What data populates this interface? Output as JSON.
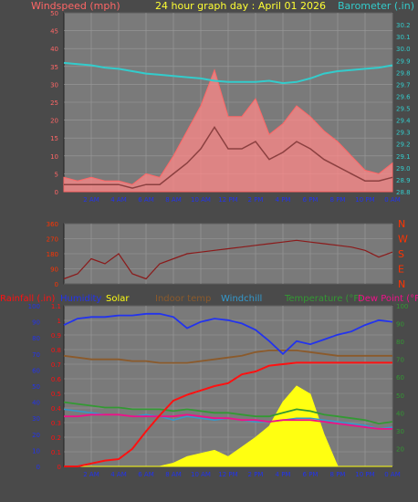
{
  "colors": {
    "background": "#4a4a4a",
    "plot_bg": "#7a7a7a",
    "grid": "#9a9a9a",
    "wind_label": "#ff6666",
    "title": "#ffff33",
    "baro": "#33cccc",
    "dir_label": "#ff3300",
    "dir_line": "#8b1a1a",
    "rain": "#ff1111",
    "humidity": "#2233ee",
    "solar": "#ffff11",
    "indoor": "#8b5a2b",
    "windchill": "#3399cc",
    "temperature": "#339933",
    "dewpoint": "#ee1188",
    "gust": "#ff8888",
    "avgwind": "#8b4040"
  },
  "header": {
    "wind_label": "Windspeed (mph)",
    "title": "24 hour graph day : April 01 2026",
    "baro_label": "Barometer (.in)"
  },
  "bottom_header": {
    "rain": "Rainfall (.in)",
    "humidity": "Humidity",
    "solar": "Solar",
    "indoor": "Indoor temp",
    "windchill": "Windchill",
    "temperature": "Temperature (°F)",
    "dewpoint": "Dew Point (°F)"
  },
  "chart_data": [
    {
      "type": "line",
      "panel": "wind_baro",
      "x_ticks": [
        "2 AM",
        "4 AM",
        "6 AM",
        "8 AM",
        "10 AM",
        "12 PM",
        "2 PM",
        "4 PM",
        "6 PM",
        "8 PM",
        "10 PM",
        "0 AM"
      ],
      "left_axis": {
        "label": "Windspeed (mph)",
        "ylim": [
          0,
          50
        ],
        "ticks": [
          0,
          5,
          10,
          15,
          20,
          25,
          30,
          35,
          40,
          45,
          50
        ]
      },
      "right_axis": {
        "label": "Barometer (.in)",
        "ylim": [
          28.8,
          30.3
        ],
        "ticks": [
          "28.8",
          "28.9",
          "29.0",
          "29.1",
          "29.2",
          "29.3",
          "29.4",
          "29.5",
          "29.6",
          "29.7",
          "29.8",
          "29.9",
          "30.0",
          "30.1",
          "30.2"
        ]
      },
      "x": [
        0,
        1,
        2,
        3,
        4,
        5,
        6,
        7,
        8,
        9,
        10,
        11,
        12,
        13,
        14,
        15,
        16,
        17,
        18,
        19,
        20,
        21,
        22,
        23,
        24
      ],
      "series": [
        {
          "name": "Barometer (.in)",
          "axis": "right",
          "values": [
            29.88,
            29.87,
            29.86,
            29.84,
            29.83,
            29.81,
            29.79,
            29.78,
            29.77,
            29.76,
            29.75,
            29.73,
            29.72,
            29.72,
            29.72,
            29.73,
            29.71,
            29.72,
            29.75,
            29.79,
            29.81,
            29.82,
            29.83,
            29.84,
            29.86
          ]
        },
        {
          "name": "Wind gust",
          "axis": "left",
          "values": [
            4,
            3,
            4,
            3,
            3,
            2,
            5,
            4,
            10,
            17,
            24,
            34,
            21,
            21,
            26,
            16,
            19,
            24,
            21,
            17,
            14,
            10,
            6,
            5,
            8
          ]
        },
        {
          "name": "Wind average",
          "axis": "left",
          "values": [
            2,
            2,
            2,
            2,
            2,
            1,
            2,
            2,
            5,
            8,
            12,
            18,
            12,
            12,
            14,
            9,
            11,
            14,
            12,
            9,
            7,
            5,
            3,
            3,
            4
          ]
        }
      ]
    },
    {
      "type": "line",
      "panel": "wind_direction",
      "ylim": [
        0,
        360
      ],
      "ticks_left": [
        0,
        90,
        180,
        270,
        360
      ],
      "ticks_right": [
        "N",
        "W",
        "S",
        "E",
        "N"
      ],
      "x": [
        0,
        1,
        2,
        3,
        4,
        5,
        6,
        7,
        8,
        9,
        10,
        11,
        12,
        13,
        14,
        15,
        16,
        17,
        18,
        19,
        20,
        21,
        22,
        23,
        24
      ],
      "series": [
        {
          "name": "Wind direction",
          "values": [
            30,
            60,
            150,
            120,
            180,
            60,
            30,
            120,
            150,
            180,
            190,
            200,
            210,
            220,
            230,
            240,
            250,
            260,
            250,
            240,
            230,
            220,
            200,
            160,
            190
          ]
        }
      ]
    },
    {
      "type": "line",
      "panel": "temp_hum_rain",
      "x_ticks": [
        "2 AM",
        "4 AM",
        "6 AM",
        "8 AM",
        "10 AM",
        "12 PM",
        "2 PM",
        "4 PM",
        "6 PM",
        "8 PM",
        "10 PM",
        "0 AM"
      ],
      "left_axis": {
        "label": "Rainfall (.in)",
        "ylim": [
          0,
          1.1
        ],
        "ticks": [
          "0",
          "0.1",
          "0.2",
          "0.3",
          "0.4",
          "0.5",
          "0.6",
          "0.7",
          "0.8",
          "0.9",
          "1",
          "1.1"
        ]
      },
      "left2_axis": {
        "ylim": [
          0,
          100
        ],
        "ticks": [
          0,
          10,
          20,
          30,
          40,
          50,
          60,
          70,
          80,
          90,
          100
        ]
      },
      "right_axis": {
        "label": "Temperature (°F)",
        "ylim": [
          10,
          100
        ],
        "ticks": [
          20,
          30,
          40,
          50,
          60,
          70,
          80,
          90,
          100
        ]
      },
      "x": [
        0,
        1,
        2,
        3,
        4,
        5,
        6,
        7,
        8,
        9,
        10,
        11,
        12,
        13,
        14,
        15,
        16,
        17,
        18,
        19,
        20,
        21,
        22,
        23,
        24
      ],
      "series": [
        {
          "name": "Rainfall (.in)",
          "axis": "left",
          "values": [
            0,
            0,
            0.02,
            0.04,
            0.05,
            0.12,
            0.24,
            0.35,
            0.45,
            0.49,
            0.52,
            0.55,
            0.57,
            0.63,
            0.65,
            0.69,
            0.7,
            0.71,
            0.71,
            0.71,
            0.71,
            0.71,
            0.71,
            0.71,
            0.71
          ]
        },
        {
          "name": "Humidity",
          "axis": "left2",
          "values": [
            88,
            92,
            93,
            93,
            94,
            94,
            95,
            95,
            93,
            86,
            90,
            92,
            91,
            89,
            85,
            78,
            70,
            78,
            76,
            79,
            82,
            84,
            88,
            91,
            90
          ]
        },
        {
          "name": "Indoor temp",
          "axis": "right",
          "values": [
            72,
            71,
            70,
            70,
            70,
            69,
            69,
            68,
            68,
            68,
            69,
            70,
            71,
            72,
            74,
            75,
            75,
            75,
            74,
            73,
            72,
            72,
            72,
            72,
            72
          ]
        },
        {
          "name": "Temperature (°F)",
          "axis": "right",
          "values": [
            46,
            45,
            44,
            43,
            43,
            42,
            42,
            42,
            41,
            42,
            41,
            40,
            40,
            39,
            38,
            38,
            40,
            42,
            41,
            39,
            38,
            37,
            36,
            34,
            35
          ]
        },
        {
          "name": "Windchill",
          "axis": "right",
          "values": [
            42,
            41,
            40,
            39,
            39,
            38,
            39,
            38,
            36,
            38,
            37,
            36,
            37,
            36,
            35,
            35,
            36,
            37,
            37,
            36,
            35,
            34,
            33,
            31,
            32
          ]
        },
        {
          "name": "Dew Point (°F)",
          "axis": "right",
          "values": [
            38,
            38,
            39,
            39,
            39,
            38,
            38,
            38,
            38,
            39,
            38,
            37,
            37,
            36,
            36,
            35,
            36,
            36,
            36,
            35,
            34,
            33,
            32,
            31,
            31
          ]
        },
        {
          "name": "Solar",
          "axis": "left2",
          "values": [
            0,
            0,
            0,
            0,
            0,
            0,
            0,
            0,
            2,
            6,
            8,
            10,
            6,
            12,
            18,
            25,
            40,
            50,
            45,
            20,
            0,
            0,
            0,
            0,
            0
          ]
        }
      ]
    }
  ]
}
